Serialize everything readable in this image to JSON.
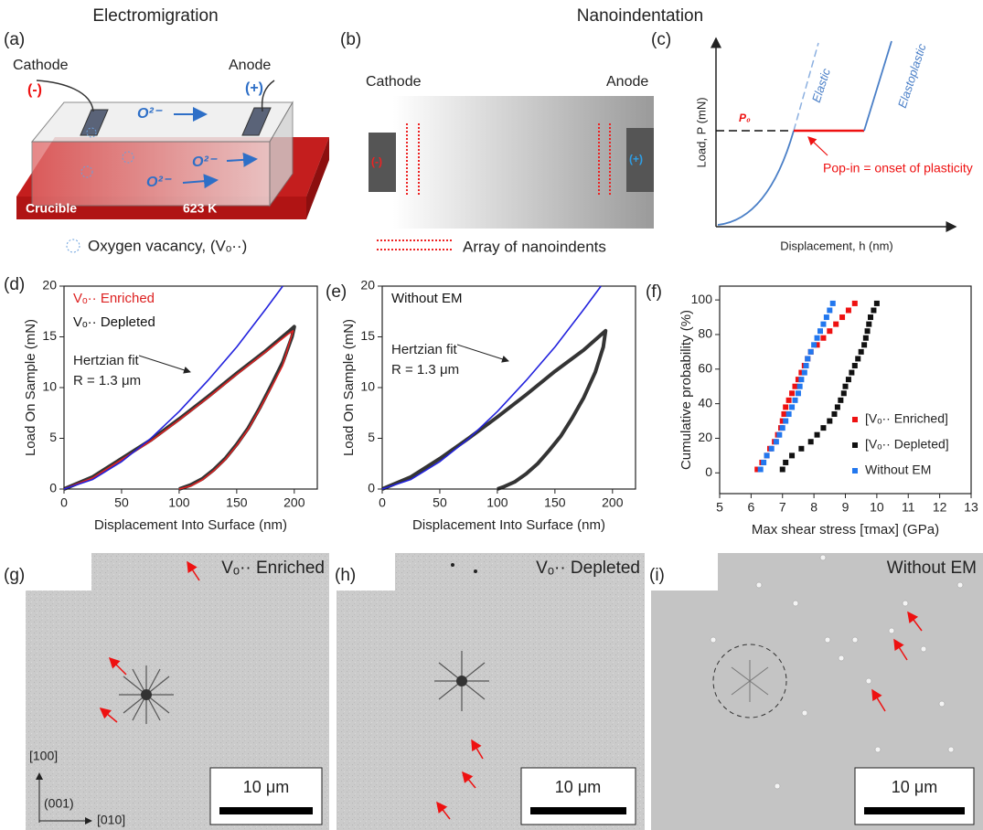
{
  "headings": {
    "left": "Electromigration",
    "right": "Nanoindentation"
  },
  "panel_labels": [
    "(a)",
    "(b)",
    "(c)",
    "(d)",
    "(e)",
    "(f)",
    "(g)",
    "(h)",
    "(i)"
  ],
  "panel_a": {
    "cathode": "Cathode",
    "anode": "Anode",
    "minus": "(-)",
    "plus": "(+)",
    "ion": "O²⁻",
    "crucible": "Crucible",
    "temperature": "623 K",
    "vacancy_legend": "Oxygen vacancy, (Vₒ··)"
  },
  "panel_b": {
    "cathode": "Cathode",
    "anode": "Anode",
    "minus": "(-)",
    "plus": "(+)",
    "array_legend": "Array of nanoindents"
  },
  "panel_c": {
    "ylabel": "Load, P (mN)",
    "xlabel": "Displacement, h (nm)",
    "p0": "P₀",
    "elastic": "Elastic",
    "elastoplastic": "Elastoplastic",
    "popin": "Pop-in = onset of plasticity"
  },
  "chart_data": [
    {
      "type": "line",
      "xlabel": "Displacement Into Surface (nm)",
      "ylabel": "Load On Sample (mN)",
      "xlim": [
        0,
        220
      ],
      "xticks": [
        0,
        50,
        100,
        150,
        200
      ],
      "ylim": [
        0,
        20
      ],
      "yticks": [
        0,
        5,
        10,
        15,
        20
      ],
      "annotations": [
        "R = 1.3 μm"
      ],
      "series": [
        {
          "name": "Hertzian fit",
          "color": "#2222dd",
          "x": [
            0,
            25,
            50,
            75,
            100,
            125,
            150,
            175,
            190
          ],
          "values": [
            0,
            0.95,
            2.7,
            4.95,
            7.64,
            10.7,
            14.0,
            17.7,
            20
          ]
        },
        {
          "name": "Vₒ·· Enriched",
          "color": "#dd2222",
          "x": [
            0,
            25,
            50,
            75,
            100,
            125,
            150,
            175,
            195,
            199,
            196,
            190,
            180,
            170,
            160,
            150,
            140,
            130,
            120,
            110,
            100
          ],
          "values": [
            0,
            1.1,
            2.9,
            4.7,
            6.8,
            9.0,
            11.3,
            13.5,
            15.3,
            15.6,
            14.5,
            12.2,
            10.0,
            7.9,
            5.9,
            4.3,
            2.9,
            1.8,
            0.9,
            0.3,
            0
          ]
        },
        {
          "name": "Vₒ·· Depleted",
          "color": "#111111",
          "x": [
            0,
            25,
            50,
            75,
            100,
            125,
            150,
            175,
            195,
            200,
            198,
            190,
            180,
            170,
            160,
            150,
            140,
            130,
            120,
            110,
            100
          ],
          "values": [
            0,
            1.2,
            3.0,
            4.8,
            6.9,
            9.1,
            11.4,
            13.6,
            15.5,
            16.0,
            15.0,
            12.5,
            10.2,
            8.0,
            6.0,
            4.4,
            3.0,
            1.9,
            1.0,
            0.4,
            0
          ]
        }
      ]
    },
    {
      "type": "line",
      "xlabel": "Displacement Into Surface (nm)",
      "ylabel": "Load On Sample (mN)",
      "xlim": [
        0,
        220
      ],
      "xticks": [
        0,
        50,
        100,
        150,
        200
      ],
      "ylim": [
        0,
        20
      ],
      "yticks": [
        0,
        5,
        10,
        15,
        20
      ],
      "annotations": [
        "R = 1.3 μm"
      ],
      "series": [
        {
          "name": "Hertzian fit",
          "color": "#2222dd",
          "x": [
            0,
            25,
            50,
            75,
            100,
            125,
            150,
            175,
            190
          ],
          "values": [
            0,
            0.95,
            2.7,
            4.95,
            7.64,
            10.7,
            14.0,
            17.7,
            20
          ]
        },
        {
          "name": "Without EM",
          "color": "#111111",
          "x": [
            0,
            25,
            50,
            75,
            100,
            125,
            150,
            175,
            190,
            194,
            192,
            185,
            175,
            165,
            155,
            145,
            135,
            125,
            115,
            105,
            100
          ],
          "values": [
            0,
            1.2,
            3.0,
            5.0,
            7.1,
            9.3,
            11.6,
            13.7,
            15.2,
            15.6,
            14.0,
            11.5,
            9.0,
            7.0,
            5.2,
            3.8,
            2.5,
            1.5,
            0.7,
            0.2,
            0
          ]
        }
      ]
    },
    {
      "type": "scatter",
      "xlabel": "Max shear stress [τmax] (GPa)",
      "ylabel": "Cumulative probability (%)",
      "xlim": [
        5,
        13
      ],
      "xticks": [
        5,
        6,
        7,
        8,
        9,
        10,
        11,
        12,
        13
      ],
      "ylim": [
        -12,
        108
      ],
      "yticks": [
        0,
        20,
        40,
        60,
        80,
        100
      ],
      "legend": "lower right",
      "series": [
        {
          "name": "[Vₒ·· Enriched]",
          "color": "#ee1111",
          "x": [
            6.2,
            6.35,
            6.5,
            6.6,
            6.75,
            6.85,
            6.95,
            7.0,
            7.05,
            7.1,
            7.2,
            7.3,
            7.4,
            7.5,
            7.6,
            7.7,
            7.8,
            7.9,
            8.1,
            8.3,
            8.5,
            8.7,
            8.9,
            9.1,
            9.3
          ],
          "values": [
            2,
            6,
            10,
            14,
            18,
            22,
            26,
            30,
            34,
            38,
            42,
            46,
            50,
            54,
            58,
            62,
            66,
            70,
            74,
            78,
            82,
            86,
            90,
            94,
            98
          ]
        },
        {
          "name": "[Vₒ·· Depleted]",
          "color": "#111111",
          "x": [
            7.0,
            7.1,
            7.3,
            7.6,
            7.9,
            8.1,
            8.3,
            8.5,
            8.65,
            8.75,
            8.85,
            8.95,
            9.0,
            9.1,
            9.2,
            9.3,
            9.4,
            9.5,
            9.6,
            9.65,
            9.7,
            9.75,
            9.8,
            9.9,
            10.0
          ],
          "values": [
            2,
            6,
            10,
            14,
            18,
            22,
            26,
            30,
            34,
            38,
            42,
            46,
            50,
            54,
            58,
            62,
            66,
            70,
            74,
            78,
            82,
            86,
            90,
            94,
            98
          ]
        },
        {
          "name": "Without EM",
          "color": "#2277ee",
          "x": [
            6.3,
            6.4,
            6.5,
            6.65,
            6.8,
            6.9,
            7.0,
            7.1,
            7.2,
            7.3,
            7.4,
            7.5,
            7.55,
            7.6,
            7.7,
            7.75,
            7.8,
            7.9,
            8.0,
            8.1,
            8.2,
            8.3,
            8.4,
            8.5,
            8.6
          ],
          "values": [
            2,
            6,
            10,
            14,
            18,
            22,
            26,
            30,
            34,
            38,
            42,
            46,
            50,
            54,
            58,
            62,
            66,
            70,
            74,
            78,
            82,
            86,
            90,
            94,
            98
          ]
        }
      ]
    }
  ],
  "panel_g": {
    "label": "Vₒ·· Enriched",
    "scale": "10 μm",
    "dir_100": "[100]",
    "dir_001": "(001)",
    "dir_010": "[010]"
  },
  "panel_h": {
    "label": "Vₒ·· Depleted",
    "scale": "10 μm"
  },
  "panel_i": {
    "label": "Without EM",
    "scale": "10 μm"
  }
}
